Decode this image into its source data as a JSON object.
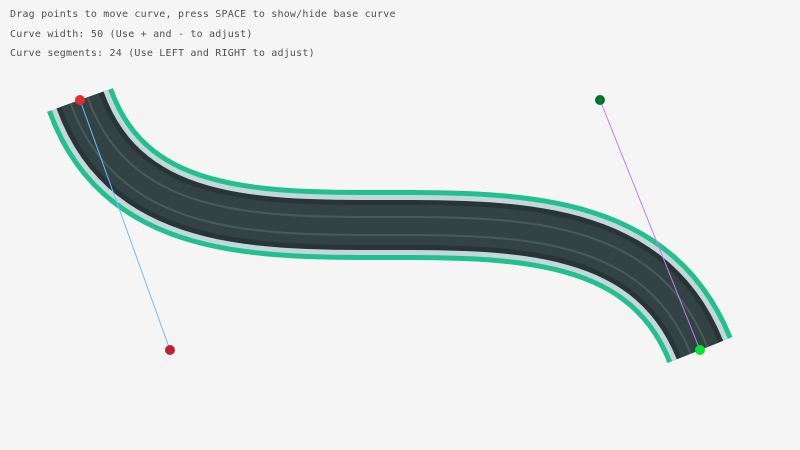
{
  "info": {
    "line1": "Drag points to move curve, press SPACE to show/hide base curve",
    "line2": "Curve width: 50 (Use + and - to adjust)",
    "line3": "Curve segments: 24 (Use LEFT and RIGHT to adjust)"
  },
  "curve": {
    "width": 50,
    "segments": 24,
    "start_point_color": "#e62937",
    "start_control_color": "#be2137",
    "end_control_color": "#00752c",
    "end_point_color": "#00e430",
    "start_handle_line_color": "#66bfff",
    "end_handle_line_color": "#c87aff"
  },
  "colors": {
    "background": "#f5f5f5",
    "border": "#22c08e",
    "edge": "#c3d7db",
    "shoulder": "#283435",
    "road": "#334243",
    "lane": "#4a5a5c"
  }
}
